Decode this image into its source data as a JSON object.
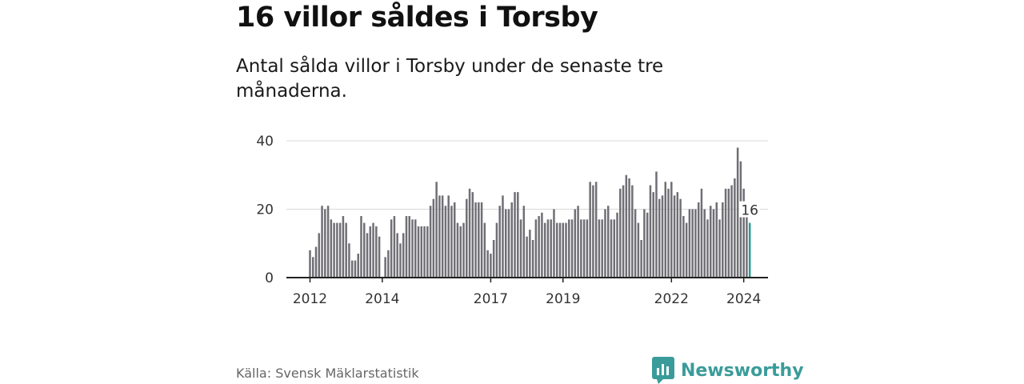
{
  "title": "16 villor såldes i Torsby",
  "subtitle": "Antal sålda villor i Torsby under de senaste tre månaderna.",
  "source": "Källa: Svensk Mäklarstatistik",
  "brand": {
    "name": "Newsworthy",
    "icon": "newsworthy-logo-icon",
    "color": "#3a9c9a"
  },
  "colors": {
    "bar": "#706f75",
    "highlight": "#2a9d92",
    "grid": "#d9d9d9",
    "axis": "#222222"
  },
  "chart_data": {
    "type": "bar",
    "title": "",
    "xlabel": "",
    "ylabel": "",
    "ylim": [
      0,
      40
    ],
    "yticks": [
      0,
      20,
      40
    ],
    "xticks": [
      {
        "label": "2012",
        "month": "2012-01"
      },
      {
        "label": "2014",
        "month": "2014-01"
      },
      {
        "label": "2017",
        "month": "2017-01"
      },
      {
        "label": "2019",
        "month": "2019-01"
      },
      {
        "label": "2022",
        "month": "2022-01"
      },
      {
        "label": "2024",
        "month": "2024-01"
      }
    ],
    "grid": true,
    "start_month": "2012-01",
    "values": [
      8,
      6,
      9,
      13,
      21,
      20,
      21,
      17,
      16,
      16,
      16,
      18,
      16,
      10,
      5,
      5,
      7,
      18,
      16,
      13,
      15,
      16,
      15,
      12,
      0,
      6,
      8,
      17,
      18,
      13,
      10,
      13,
      18,
      18,
      17,
      17,
      15,
      15,
      15,
      15,
      21,
      23,
      28,
      24,
      24,
      21,
      24,
      21,
      22,
      16,
      15,
      16,
      23,
      26,
      25,
      22,
      22,
      22,
      16,
      8,
      7,
      11,
      16,
      21,
      24,
      20,
      20,
      22,
      25,
      25,
      17,
      21,
      12,
      14,
      11,
      17,
      18,
      19,
      16,
      17,
      17,
      20,
      16,
      16,
      16,
      16,
      17,
      17,
      20,
      21,
      17,
      17,
      17,
      28,
      27,
      28,
      17,
      17,
      20,
      21,
      17,
      17,
      19,
      26,
      27,
      30,
      29,
      27,
      20,
      16,
      11,
      20,
      19,
      27,
      25,
      31,
      23,
      24,
      28,
      26,
      28,
      24,
      25,
      23,
      18,
      16,
      20,
      20,
      20,
      22,
      26,
      20,
      17,
      21,
      20,
      22,
      17,
      22,
      26,
      26,
      27,
      29,
      38,
      34,
      26,
      18,
      16
    ],
    "highlight_last": 1,
    "annotation": {
      "label": "16",
      "value": 16
    }
  }
}
